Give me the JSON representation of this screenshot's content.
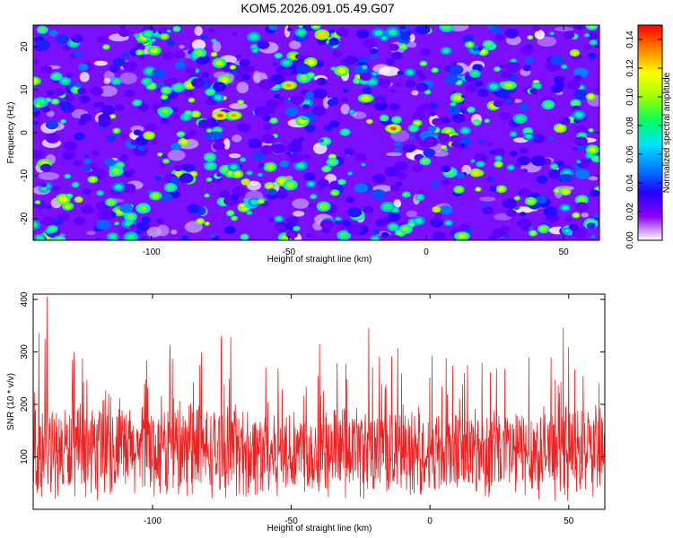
{
  "chart_data": [
    {
      "type": "heatmap",
      "title": "KOM5.2026.091.05.49.G07",
      "xlabel": "Height of straight line (km)",
      "ylabel": "Frequency (Hz)",
      "xlim": [
        -143,
        63
      ],
      "ylim": [
        -25,
        25
      ],
      "xticks": [
        -100,
        -50,
        0,
        50
      ],
      "yticks": [
        -20,
        -10,
        0,
        10,
        20
      ],
      "colorbar": {
        "label": "Normalized spectral amplitude",
        "range": [
          0.0,
          0.15
        ],
        "ticks": [
          "0.00",
          "0.02",
          "0.04",
          "0.06",
          "0.08",
          "0.10",
          "0.12",
          "0.14"
        ],
        "colormap": [
          "#ffffff",
          "#8a00ff",
          "#2400ff",
          "#0080ff",
          "#00e0ff",
          "#00ff60",
          "#a0ff00",
          "#ffff00",
          "#ff8000",
          "#ff0000"
        ]
      },
      "hotspots": [
        {
          "x": -143,
          "y": 12,
          "value": 0.12
        },
        {
          "x": -75,
          "y": 4,
          "value": 0.14
        },
        {
          "x": -70,
          "y": 4,
          "value": 0.13
        },
        {
          "x": -50,
          "y": 11,
          "value": 0.13
        },
        {
          "x": -22,
          "y": 8,
          "value": 0.12
        },
        {
          "x": -12,
          "y": 1,
          "value": 0.14
        },
        {
          "x": 30,
          "y": 11,
          "value": 0.11
        },
        {
          "x": 13,
          "y": -24,
          "value": 0.11
        },
        {
          "x": -95,
          "y": 5,
          "value": 0.1
        }
      ]
    },
    {
      "type": "line",
      "title": "",
      "xlabel": "Height of straight line (km)",
      "ylabel": "SNR (10 * v/v)",
      "xlim": [
        -143,
        63
      ],
      "ylim": [
        0,
        410
      ],
      "xticks": [
        -100,
        -50,
        0,
        50
      ],
      "yticks": [
        100,
        200,
        300,
        400
      ],
      "series": [
        {
          "name": "SNR",
          "color": "#ee2222",
          "baseline": 110,
          "typical_range": [
            20,
            250
          ],
          "peaks": [
            {
              "x": -138,
              "y": 405
            },
            {
              "x": -141,
              "y": 335
            },
            {
              "x": -22,
              "y": 345
            },
            {
              "x": 48,
              "y": 345
            }
          ]
        }
      ]
    }
  ]
}
